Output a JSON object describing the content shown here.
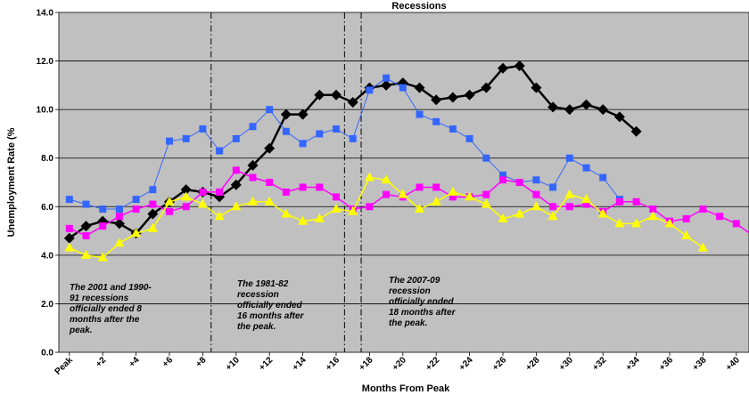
{
  "chart_data": {
    "type": "line",
    "title": "Recessions",
    "xlabel": "Months From Peak",
    "ylabel": "Unemployment Rate (%",
    "ylim": [
      0,
      14
    ],
    "yticks": [
      "0.0",
      "2.0",
      "4.0",
      "6.0",
      "8.0",
      "10.0",
      "12.0",
      "14.0"
    ],
    "xticks": [
      "Peak",
      "+2",
      "+4",
      "+6",
      "+8",
      "+10",
      "+12",
      "+14",
      "+16",
      "+18",
      "+20",
      "+22",
      "+24",
      "+26",
      "+28",
      "+30",
      "+32",
      "+34",
      "+36",
      "+38",
      "+40"
    ],
    "x_range": [
      0,
      41
    ],
    "grid": true,
    "background_color": "#c0c0c0",
    "recession_end_lines": [
      8.5,
      16.5,
      17.5
    ],
    "annotations": [
      "The 2001 and 1990-",
      "91 recessions",
      "officially ended 8",
      "months after the",
      "peak.",
      "The 1981-82",
      "recession",
      "officially ended",
      "16 months after",
      "the peak.",
      "The 2007-09",
      "recession",
      "officially ended",
      "18 months after",
      "the peak."
    ],
    "series": [
      {
        "color": "#000000",
        "marker": "diamond",
        "line_width": 2.5,
        "x": [
          0,
          1,
          2,
          3,
          4,
          5,
          6,
          7,
          8,
          9,
          10,
          11,
          12,
          13,
          14,
          15,
          16,
          17,
          18,
          19,
          20,
          21,
          22,
          23,
          24,
          25,
          26,
          27,
          28,
          29,
          30,
          31,
          32,
          33,
          34
        ],
        "values": [
          4.7,
          5.2,
          5.4,
          5.3,
          4.9,
          5.7,
          6.2,
          6.7,
          6.6,
          6.4,
          6.9,
          7.7,
          8.4,
          9.8,
          9.8,
          10.6,
          10.6,
          10.3,
          10.9,
          11.0,
          11.1,
          10.9,
          10.4,
          10.5,
          10.6,
          10.9,
          11.7,
          11.8,
          10.9,
          10.1,
          10.0,
          10.2,
          10.0,
          9.7,
          9.1
        ]
      },
      {
        "color": "#3366ff",
        "marker": "square",
        "line_width": 1,
        "x": [
          0,
          1,
          2,
          3,
          4,
          5,
          6,
          7,
          8,
          9,
          10,
          11,
          12,
          13,
          14,
          15,
          16,
          17,
          18,
          19,
          20,
          21,
          22,
          23,
          24,
          25,
          26,
          27,
          28,
          29,
          30,
          31,
          32,
          33
        ],
        "values": [
          6.3,
          6.1,
          5.9,
          5.9,
          6.3,
          6.7,
          8.7,
          8.8,
          9.2,
          8.3,
          8.8,
          9.3,
          10.0,
          9.1,
          8.6,
          9.0,
          9.2,
          8.8,
          10.8,
          11.3,
          10.9,
          9.8,
          9.5,
          9.2,
          8.8,
          8.0,
          7.3,
          7.0,
          7.1,
          6.8,
          8.0,
          7.6,
          7.2,
          6.3
        ]
      },
      {
        "color": "#ff00ff",
        "marker": "square",
        "line_width": 1.5,
        "x": [
          0,
          1,
          2,
          3,
          4,
          5,
          6,
          7,
          8,
          9,
          10,
          11,
          12,
          13,
          14,
          15,
          16,
          17,
          18,
          19,
          20,
          21,
          22,
          23,
          24,
          25,
          26,
          27,
          28,
          29,
          30,
          31,
          32,
          33,
          34,
          35,
          36,
          37,
          38,
          39,
          40,
          41
        ],
        "values": [
          5.1,
          4.8,
          5.2,
          5.6,
          5.9,
          6.1,
          5.8,
          6.0,
          6.6,
          6.6,
          7.5,
          7.2,
          7.0,
          6.6,
          6.8,
          6.8,
          6.4,
          5.9,
          6.0,
          6.5,
          6.4,
          6.8,
          6.8,
          6.4,
          6.4,
          6.5,
          7.1,
          7.0,
          6.5,
          6.0,
          6.0,
          6.1,
          5.8,
          6.2,
          6.2,
          5.9,
          5.4,
          5.5,
          5.9,
          5.6,
          5.3,
          4.8
        ]
      },
      {
        "color": "#ffff00",
        "marker": "triangle",
        "line_width": 1.5,
        "x": [
          0,
          1,
          2,
          3,
          4,
          5,
          6,
          7,
          8,
          9,
          10,
          11,
          12,
          13,
          14,
          15,
          16,
          17,
          18,
          19,
          20,
          21,
          22,
          23,
          24,
          25,
          26,
          27,
          28,
          29,
          30,
          31,
          32,
          33,
          34,
          35,
          36,
          37,
          38
        ],
        "values": [
          4.3,
          4.0,
          3.9,
          4.5,
          4.9,
          5.1,
          6.2,
          6.4,
          6.1,
          5.6,
          6.0,
          6.2,
          6.2,
          5.7,
          5.4,
          5.5,
          5.9,
          5.8,
          7.2,
          7.1,
          6.5,
          5.9,
          6.2,
          6.6,
          6.4,
          6.1,
          5.5,
          5.7,
          6.0,
          5.6,
          6.5,
          6.3,
          5.7,
          5.3,
          5.3,
          5.6,
          5.3,
          4.8,
          4.3
        ]
      }
    ]
  }
}
